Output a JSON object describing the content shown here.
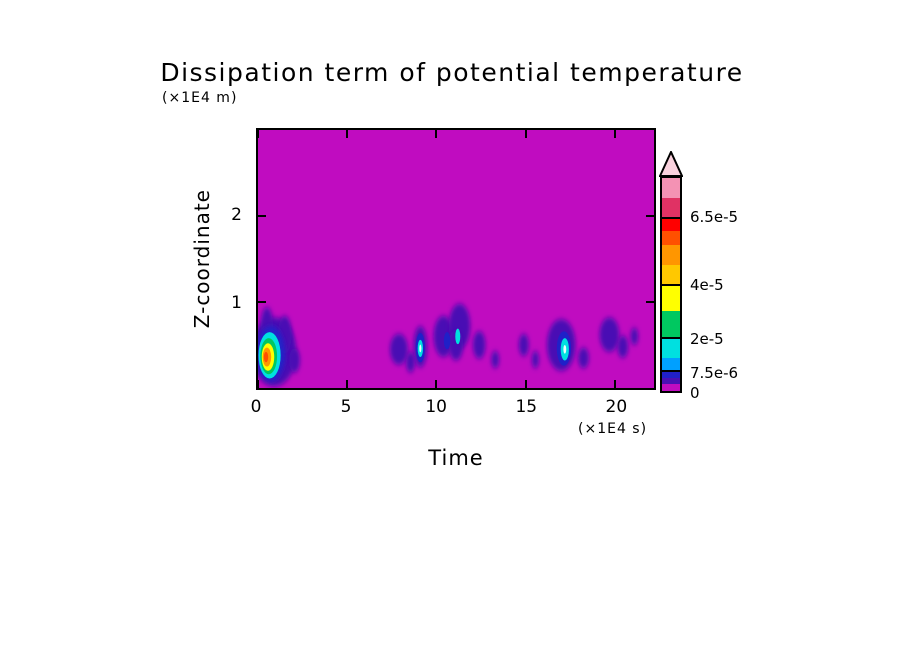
{
  "chart_data": {
    "type": "heatmap",
    "title": "Dissipation term of potential temperature",
    "xlabel": "Time",
    "ylabel": "Z-coordinate",
    "x_units": "(×1E4 s)",
    "y_units": "(×1E4 m)",
    "x_axis": {
      "min": 0,
      "max": 22.2,
      "ticks": [
        0,
        5,
        10,
        15,
        20
      ]
    },
    "y_axis": {
      "min": 0,
      "max": 3,
      "ticks": [
        1,
        2
      ]
    },
    "grid": false,
    "legend": "colorbar-right",
    "background_color": "#C00CC0",
    "background_value": 0,
    "colorbar": {
      "min": 0,
      "max": 8e-05,
      "over_color": "#FAD2DE",
      "bands": [
        {
          "from": 0,
          "to": 2.5e-06,
          "color": "#C00CC0"
        },
        {
          "from": 2.5e-06,
          "to": 5e-06,
          "color": "#4A10B4"
        },
        {
          "from": 5e-06,
          "to": 7.5e-06,
          "color": "#2020C8"
        },
        {
          "from": 7.5e-06,
          "to": 1.25e-05,
          "color": "#00A0FF"
        },
        {
          "from": 1.25e-05,
          "to": 2e-05,
          "color": "#00E0E0"
        },
        {
          "from": 2e-05,
          "to": 3e-05,
          "color": "#00C860"
        },
        {
          "from": 3e-05,
          "to": 4e-05,
          "color": "#FFFF00"
        },
        {
          "from": 4e-05,
          "to": 4.75e-05,
          "color": "#FFC800"
        },
        {
          "from": 4.75e-05,
          "to": 5.5e-05,
          "color": "#FF9600"
        },
        {
          "from": 5.5e-05,
          "to": 6e-05,
          "color": "#FF5000"
        },
        {
          "from": 6e-05,
          "to": 6.5e-05,
          "color": "#FF0000"
        },
        {
          "from": 6.5e-05,
          "to": 7.25e-05,
          "color": "#E03264"
        },
        {
          "from": 7.25e-05,
          "to": 8e-05,
          "color": "#F492B4"
        }
      ],
      "tick_labels": [
        {
          "value": 0,
          "label": "0"
        },
        {
          "value": 7.5e-06,
          "label": "7.5e-6"
        },
        {
          "value": 2e-05,
          "label": "2e-5"
        },
        {
          "value": 4e-05,
          "label": "4e-5"
        },
        {
          "value": 6.5e-05,
          "label": "6.5e-5"
        }
      ]
    },
    "features": [
      {
        "x": 0.9,
        "z": 0.42,
        "rx": 1.25,
        "rz": 0.4,
        "value": 2.5e-06,
        "color": "#4A10B4",
        "soft": true
      },
      {
        "x": 0.5,
        "z": 0.74,
        "rx": 0.33,
        "rz": 0.2,
        "value": 2.5e-06,
        "color": "#4A10B4",
        "soft": true
      },
      {
        "x": 1.5,
        "z": 0.62,
        "rx": 0.38,
        "rz": 0.22,
        "value": 2.5e-06,
        "color": "#4A10B4",
        "soft": true
      },
      {
        "x": 2.05,
        "z": 0.32,
        "rx": 0.3,
        "rz": 0.14,
        "value": 2.5e-06,
        "color": "#4A10B4",
        "soft": true
      },
      {
        "x": 0.72,
        "z": 0.4,
        "rx": 0.8,
        "rz": 0.32,
        "value": 5e-06,
        "color": "#2020C8",
        "soft": true
      },
      {
        "x": 0.65,
        "z": 0.38,
        "rx": 0.62,
        "rz": 0.27,
        "value": 1.25e-05,
        "color": "#00E0E0",
        "soft": false
      },
      {
        "x": 0.6,
        "z": 0.37,
        "rx": 0.47,
        "rz": 0.21,
        "value": 2e-05,
        "color": "#00C860",
        "soft": false
      },
      {
        "x": 0.56,
        "z": 0.36,
        "rx": 0.35,
        "rz": 0.16,
        "value": 3e-05,
        "color": "#FFFF00",
        "soft": false
      },
      {
        "x": 0.5,
        "z": 0.36,
        "rx": 0.24,
        "rz": 0.11,
        "value": 4.75e-05,
        "color": "#FF9600",
        "soft": false
      },
      {
        "x": 0.45,
        "z": 0.36,
        "rx": 0.12,
        "rz": 0.06,
        "value": 5.5e-05,
        "color": "#FF5000",
        "soft": false
      },
      {
        "x": 7.9,
        "z": 0.45,
        "rx": 0.5,
        "rz": 0.18,
        "value": 2.5e-06,
        "color": "#4A10B4",
        "soft": true
      },
      {
        "x": 8.55,
        "z": 0.3,
        "rx": 0.25,
        "rz": 0.12,
        "value": 2.5e-06,
        "color": "#4A10B4",
        "soft": true
      },
      {
        "x": 9.1,
        "z": 0.48,
        "rx": 0.38,
        "rz": 0.24,
        "value": 2.5e-06,
        "color": "#4A10B4",
        "soft": true
      },
      {
        "x": 9.1,
        "z": 0.47,
        "rx": 0.26,
        "rz": 0.17,
        "value": 5e-06,
        "color": "#2020C8",
        "soft": false
      },
      {
        "x": 9.1,
        "z": 0.46,
        "rx": 0.15,
        "rz": 0.1,
        "value": 1.25e-05,
        "color": "#00E0E0",
        "soft": false
      },
      {
        "x": 9.1,
        "z": 0.46,
        "rx": 0.06,
        "rz": 0.045,
        "value": 2e-05,
        "color": "#E8FCFF",
        "soft": false
      },
      {
        "x": 10.4,
        "z": 0.6,
        "rx": 0.55,
        "rz": 0.24,
        "value": 2.5e-06,
        "color": "#4A10B4",
        "soft": true
      },
      {
        "x": 11.3,
        "z": 0.72,
        "rx": 0.6,
        "rz": 0.26,
        "value": 2.5e-06,
        "color": "#4A10B4",
        "soft": true
      },
      {
        "x": 11.1,
        "z": 0.5,
        "rx": 0.4,
        "rz": 0.18,
        "value": 2.5e-06,
        "color": "#4A10B4",
        "soft": true
      },
      {
        "x": 10.6,
        "z": 0.55,
        "rx": 0.18,
        "rz": 0.1,
        "value": 5e-06,
        "color": "#2020C8",
        "soft": false
      },
      {
        "x": 11.2,
        "z": 0.6,
        "rx": 0.14,
        "rz": 0.09,
        "value": 1.25e-05,
        "color": "#00E0E0",
        "soft": false
      },
      {
        "x": 12.4,
        "z": 0.5,
        "rx": 0.35,
        "rz": 0.16,
        "value": 2.5e-06,
        "color": "#4A10B4",
        "soft": true
      },
      {
        "x": 13.3,
        "z": 0.33,
        "rx": 0.22,
        "rz": 0.1,
        "value": 2.5e-06,
        "color": "#4A10B4",
        "soft": true
      },
      {
        "x": 14.9,
        "z": 0.5,
        "rx": 0.28,
        "rz": 0.13,
        "value": 2.5e-06,
        "color": "#4A10B4",
        "soft": true
      },
      {
        "x": 15.55,
        "z": 0.33,
        "rx": 0.2,
        "rz": 0.1,
        "value": 2.5e-06,
        "color": "#4A10B4",
        "soft": true
      },
      {
        "x": 17.0,
        "z": 0.5,
        "rx": 0.8,
        "rz": 0.3,
        "value": 2.5e-06,
        "color": "#4A10B4",
        "soft": true
      },
      {
        "x": 17.15,
        "z": 0.46,
        "rx": 0.4,
        "rz": 0.2,
        "value": 5e-06,
        "color": "#2020C8",
        "soft": false
      },
      {
        "x": 17.2,
        "z": 0.45,
        "rx": 0.23,
        "rz": 0.13,
        "value": 1.25e-05,
        "color": "#00E0E0",
        "soft": false
      },
      {
        "x": 17.2,
        "z": 0.45,
        "rx": 0.08,
        "rz": 0.05,
        "value": 2e-05,
        "color": "#E8FCFF",
        "soft": false
      },
      {
        "x": 18.25,
        "z": 0.35,
        "rx": 0.3,
        "rz": 0.12,
        "value": 2.5e-06,
        "color": "#4A10B4",
        "soft": true
      },
      {
        "x": 19.7,
        "z": 0.62,
        "rx": 0.55,
        "rz": 0.2,
        "value": 2.5e-06,
        "color": "#4A10B4",
        "soft": true
      },
      {
        "x": 20.45,
        "z": 0.48,
        "rx": 0.3,
        "rz": 0.13,
        "value": 2.5e-06,
        "color": "#4A10B4",
        "soft": true
      },
      {
        "x": 21.1,
        "z": 0.6,
        "rx": 0.22,
        "rz": 0.1,
        "value": 2.5e-06,
        "color": "#4A10B4",
        "soft": true
      }
    ]
  }
}
